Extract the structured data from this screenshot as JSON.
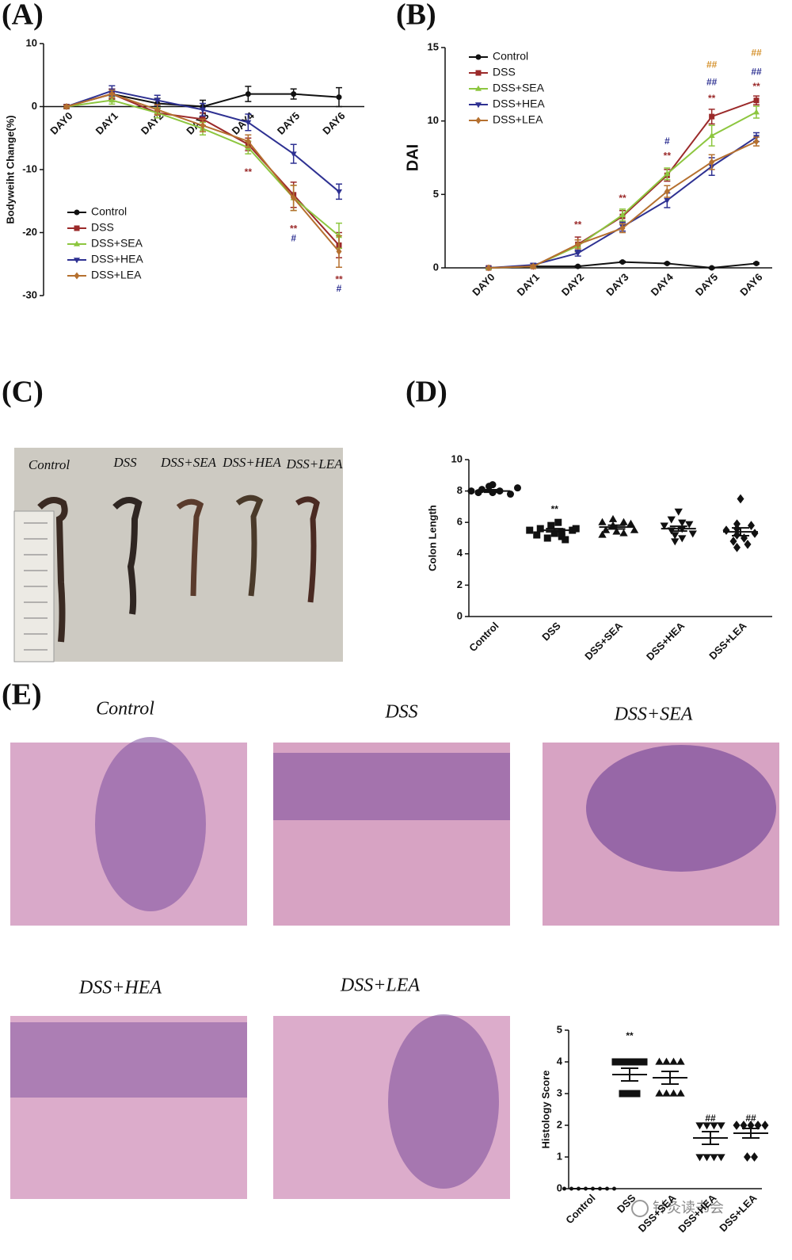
{
  "panel_labels": [
    "(A)",
    "(B)",
    "(C)",
    "(D)",
    "(E)"
  ],
  "chart_data": [
    {
      "type": "line",
      "y_label": "Bodyweiht Change(%)",
      "legend": "lower left",
      "categories": [
        "DAY0",
        "DAY1",
        "DAY2",
        "DAY3",
        "DAY4",
        "DAY5",
        "DAY6"
      ],
      "ylim": [
        -30,
        10
      ],
      "yticks": [
        -30,
        -20,
        -10,
        0,
        10
      ],
      "series": [
        {
          "name": "Control",
          "color": "#111111",
          "marker": "circle",
          "values": [
            0,
            2,
            0.5,
            0,
            2,
            2,
            1.5
          ],
          "errors": [
            0.3,
            0.8,
            0.8,
            1,
            1.2,
            0.8,
            1.5
          ]
        },
        {
          "name": "DSS",
          "color": "#9b2a2a",
          "marker": "square",
          "values": [
            0,
            2,
            -1,
            -2,
            -6,
            -14,
            -22
          ],
          "errors": [
            0.2,
            0.8,
            0.8,
            1,
            1,
            2,
            2
          ]
        },
        {
          "name": "DSS+SEA",
          "color": "#8dc63f",
          "marker": "triangle",
          "values": [
            0,
            1,
            -1,
            -3.5,
            -6.5,
            -14.5,
            -20.5
          ],
          "errors": [
            0.2,
            0.6,
            0.8,
            1,
            1,
            2,
            2
          ]
        },
        {
          "name": "DSS+HEA",
          "color": "#2e3192",
          "marker": "triangle-down",
          "values": [
            0,
            2.5,
            1,
            -0.5,
            -2.5,
            -7.5,
            -13.5
          ],
          "errors": [
            0.2,
            0.8,
            0.8,
            1,
            1.3,
            1.5,
            1.2
          ]
        },
        {
          "name": "DSS+LEA",
          "color": "#b5702f",
          "marker": "diamond",
          "values": [
            0,
            2,
            -0.5,
            -3,
            -5.5,
            -14.5,
            -23
          ],
          "errors": [
            0.2,
            0.6,
            0.8,
            1,
            1,
            2,
            2.5
          ]
        }
      ],
      "annotations": [
        {
          "text": "**",
          "x": "DAY4",
          "y": -10.5,
          "color": "#9b2a2a"
        },
        {
          "text": "**",
          "x": "DAY5",
          "y": -19.5,
          "color": "#9b2a2a"
        },
        {
          "text": "#",
          "x": "DAY5",
          "y": -21,
          "color": "#2e3192"
        },
        {
          "text": "**",
          "x": "DAY6",
          "y": -27.5,
          "color": "#9b2a2a"
        },
        {
          "text": "#",
          "x": "DAY6",
          "y": -29,
          "color": "#2e3192"
        }
      ]
    },
    {
      "type": "line",
      "y_label": "DAI",
      "legend": "upper left",
      "categories": [
        "DAY0",
        "DAY1",
        "DAY2",
        "DAY3",
        "DAY4",
        "DAY5",
        "DAY6"
      ],
      "ylim": [
        0,
        15
      ],
      "yticks": [
        0,
        5,
        10,
        15
      ],
      "series": [
        {
          "name": "Control",
          "color": "#111111",
          "marker": "circle",
          "values": [
            0,
            0.1,
            0.1,
            0.4,
            0.3,
            0,
            0.3
          ],
          "errors": [
            0.05,
            0.05,
            0.05,
            0.05,
            0.05,
            0.05,
            0.05
          ]
        },
        {
          "name": "DSS",
          "color": "#9b2a2a",
          "marker": "square",
          "values": [
            0,
            0.1,
            1.6,
            3.5,
            6.3,
            10.3,
            11.4
          ],
          "errors": [
            0,
            0.1,
            0.5,
            0.4,
            0.4,
            0.5,
            0.3
          ]
        },
        {
          "name": "DSS+SEA",
          "color": "#8dc63f",
          "marker": "triangle",
          "values": [
            0,
            0.1,
            1.5,
            3.6,
            6.4,
            9,
            10.6
          ],
          "errors": [
            0,
            0.1,
            0.4,
            0.4,
            0.4,
            0.7,
            0.4
          ]
        },
        {
          "name": "DSS+HEA",
          "color": "#2e3192",
          "marker": "triangle-down",
          "values": [
            0,
            0.2,
            1,
            2.8,
            4.6,
            6.9,
            8.9
          ],
          "errors": [
            0,
            0.1,
            0.2,
            0.3,
            0.5,
            0.6,
            0.3
          ]
        },
        {
          "name": "DSS+LEA",
          "color": "#b5702f",
          "marker": "diamond",
          "values": [
            0,
            0.1,
            1.6,
            2.7,
            5.2,
            7.2,
            8.6
          ],
          "errors": [
            0,
            0.1,
            0.3,
            0.3,
            0.4,
            0.5,
            0.3
          ]
        }
      ],
      "annotations": [
        {
          "text": "**",
          "x": "DAY2",
          "y": 2.9,
          "color": "#9b2a2a"
        },
        {
          "text": "**",
          "x": "DAY3",
          "y": 4.7,
          "color": "#9b2a2a"
        },
        {
          "text": "**",
          "x": "DAY4",
          "y": 7.6,
          "color": "#9b2a2a"
        },
        {
          "text": "#",
          "x": "DAY4",
          "y": 8.6,
          "color": "#2e3192"
        },
        {
          "text": "**",
          "x": "DAY5",
          "y": 11.5,
          "color": "#9b2a2a"
        },
        {
          "text": "##",
          "x": "DAY5",
          "y": 12.6,
          "color": "#2e3192"
        },
        {
          "text": "##",
          "x": "DAY5",
          "y": 13.8,
          "color": "#d4902a"
        },
        {
          "text": "**",
          "x": "DAY6",
          "y": 12.3,
          "color": "#9b2a2a"
        },
        {
          "text": "##",
          "x": "DAY6",
          "y": 13.3,
          "color": "#2e3192"
        },
        {
          "text": "##",
          "x": "DAY6",
          "y": 14.6,
          "color": "#d4902a"
        }
      ]
    },
    {
      "type": "dot",
      "y_label": "Colon Length",
      "color": "#111111",
      "categories": [
        "Control",
        "DSS",
        "DSS+SEA",
        "DSS+HEA",
        "DSS+LEA"
      ],
      "markers": [
        "circle",
        "square",
        "triangle",
        "triangle-down",
        "diamond"
      ],
      "ylim": [
        0,
        10
      ],
      "yticks": [
        0,
        2,
        4,
        6,
        8,
        10
      ],
      "values": [
        [
          8,
          7.9,
          8.1,
          8.3,
          8.4,
          7.9,
          8,
          8.2,
          7.8
        ],
        [
          5.5,
          5.2,
          5,
          5.6,
          5.8,
          6,
          5.3,
          5.4,
          5.1,
          5.5,
          4.9,
          5.6
        ],
        [
          5.2,
          5.5,
          6,
          6.2,
          5.8,
          5.4,
          6,
          5.3,
          5.9,
          5.5
        ],
        [
          6.7,
          6.2,
          5.8,
          5.5,
          5.2,
          4.8,
          5,
          6,
          5.6,
          5.9,
          5.3
        ],
        [
          7.5,
          5.9,
          5.5,
          5.2,
          4.8,
          4.4,
          5,
          5.6,
          5.8,
          5.3,
          4.6
        ]
      ],
      "means": [
        8,
        5.5,
        5.7,
        5.6,
        5.4
      ],
      "errors": [
        0.08,
        0.1,
        0.12,
        0.15,
        0.25
      ],
      "annotations": [
        {
          "text": "**",
          "x": "DSS",
          "y": 6.8,
          "color": "#111111"
        }
      ]
    },
    {
      "type": "dot",
      "y_label": "Histology Score",
      "color": "#111111",
      "categories": [
        "Control",
        "DSS",
        "DSS+SEA",
        "DSS+HEA",
        "DSS+LEA"
      ],
      "markers": [
        "circle",
        "square",
        "triangle",
        "triangle-down",
        "diamond"
      ],
      "ylim": [
        0,
        5
      ],
      "yticks": [
        0,
        1,
        2,
        3,
        4,
        5
      ],
      "values": [
        [
          0,
          0,
          0,
          0,
          0,
          0,
          0,
          0
        ],
        [
          4,
          4,
          4,
          4,
          4,
          3,
          3,
          3
        ],
        [
          4,
          4,
          4,
          4,
          3,
          3,
          3,
          3
        ],
        [
          2,
          2,
          2,
          2,
          1,
          1,
          1,
          1
        ],
        [
          2,
          2,
          2,
          2,
          2,
          1,
          1
        ]
      ],
      "means": [
        0,
        3.6,
        3.5,
        1.6,
        1.75
      ],
      "errors": [
        0,
        0.2,
        0.2,
        0.2,
        0.15
      ],
      "annotations": [
        {
          "text": "**",
          "x": "DSS",
          "y": 4.8,
          "color": "#111111"
        },
        {
          "text": "##",
          "x": "DSS+HEA",
          "y": 2.2,
          "color": "#111111"
        },
        {
          "text": "##",
          "x": "DSS+LEA",
          "y": 2.2,
          "color": "#111111"
        }
      ]
    }
  ],
  "photo_labels": [
    "Control",
    "DSS",
    "DSS+SEA",
    "DSS+HEA",
    "DSS+LEA"
  ],
  "histology_labels": [
    "Control",
    "DSS",
    "DSS+SEA",
    "DSS+HEA",
    "DSS+LEA"
  ],
  "watermark": "针灸读书会"
}
